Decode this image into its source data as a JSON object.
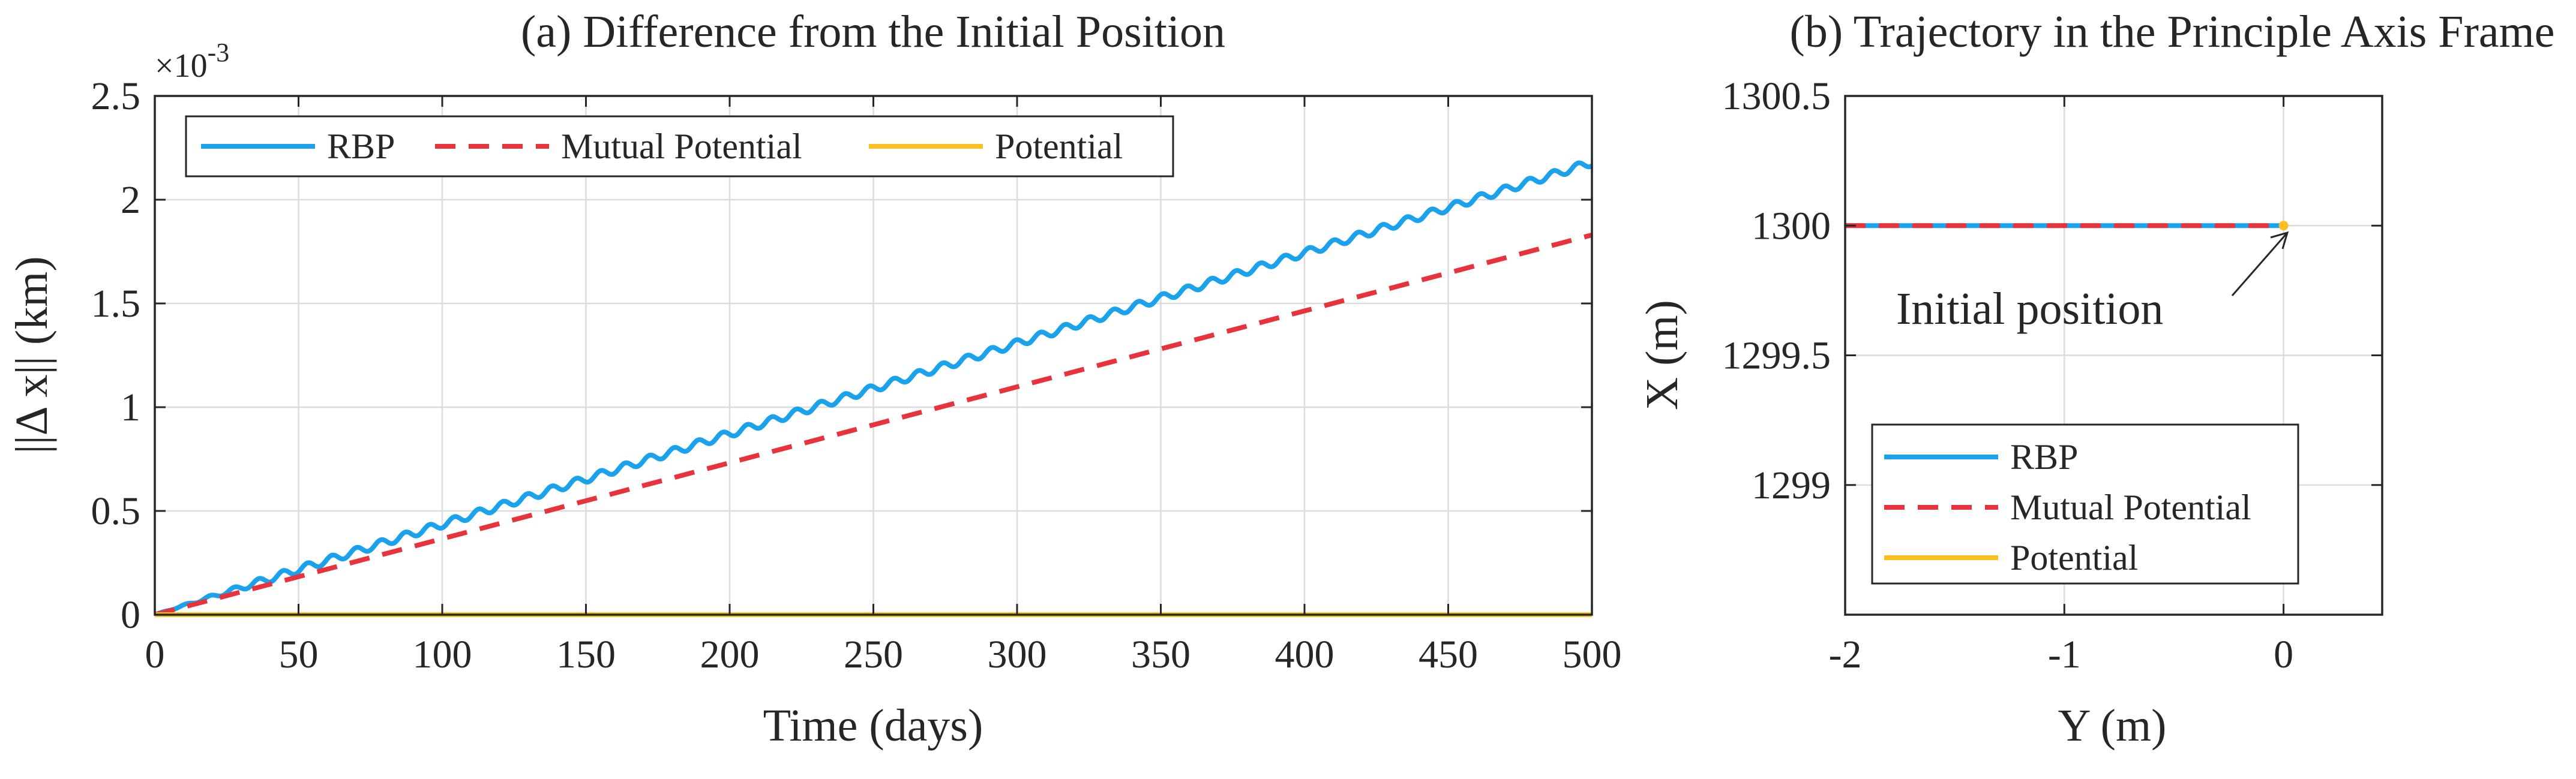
{
  "colors": {
    "rbp": "#1aa3ec",
    "mutual": "#e8323c",
    "potential": "#fbbf22",
    "axis": "#262626",
    "grid": "#dcdcdc"
  },
  "chart_data": [
    {
      "type": "line",
      "title": "(a) Difference from the Initial Position",
      "xlabel": "Time (days)",
      "ylabel": "||Δ x|| (km)",
      "y_multiplier_label": "×10",
      "y_multiplier_exponent": "-3",
      "xlim": [
        0,
        500
      ],
      "ylim": [
        0,
        2.5
      ],
      "xticks": [
        0,
        50,
        100,
        150,
        200,
        250,
        300,
        350,
        400,
        450,
        500
      ],
      "xtick_labels": [
        "0",
        "50",
        "100",
        "150",
        "200",
        "250",
        "300",
        "350",
        "400",
        "450",
        "500"
      ],
      "yticks": [
        0,
        0.5,
        1,
        1.5,
        2,
        2.5
      ],
      "ytick_labels": [
        "0",
        "0.5",
        "1",
        "1.5",
        "2",
        "2.5"
      ],
      "grid": true,
      "legend_position": "top",
      "series": [
        {
          "name": "RBP",
          "style": "solid",
          "color": "#1aa3ec",
          "x": [
            0,
            500
          ],
          "y": [
            0,
            2.18
          ],
          "oscillation_amplitude": 0.018,
          "oscillation_period_days": 8.5
        },
        {
          "name": "Mutual Potential",
          "style": "dashed",
          "color": "#e8323c",
          "x": [
            0,
            500
          ],
          "y": [
            0,
            1.83
          ]
        },
        {
          "name": "Potential",
          "style": "solid",
          "color": "#fbbf22",
          "x": [
            0,
            500
          ],
          "y": [
            0,
            0
          ]
        }
      ]
    },
    {
      "type": "line",
      "title": "(b) Trajectory in the Principle Axis Frame",
      "xlabel": "Y (m)",
      "ylabel": "X (m)",
      "xlim": [
        -2,
        0.45
      ],
      "ylim": [
        1298.5,
        1300.5
      ],
      "xticks": [
        -2,
        -1,
        0
      ],
      "xtick_labels": [
        "-2",
        "-1",
        "0"
      ],
      "yticks": [
        1299,
        1299.5,
        1300,
        1300.5
      ],
      "ytick_labels": [
        "1299",
        "1299.5",
        "1300",
        "1300.5"
      ],
      "grid": true,
      "legend_position": "bottom-left",
      "annotation": {
        "text": "Initial position",
        "x": 0,
        "y": 1300
      },
      "series": [
        {
          "name": "RBP",
          "style": "solid",
          "color": "#1aa3ec",
          "x": [
            -2,
            0
          ],
          "y": [
            1300,
            1300
          ]
        },
        {
          "name": "Mutual Potential",
          "style": "dashed",
          "color": "#e8323c",
          "x": [
            -2,
            0
          ],
          "y": [
            1300,
            1300
          ]
        },
        {
          "name": "Potential",
          "style": "solid",
          "color": "#fbbf22",
          "x": [
            0,
            0
          ],
          "y": [
            1300,
            1300
          ]
        }
      ]
    }
  ]
}
